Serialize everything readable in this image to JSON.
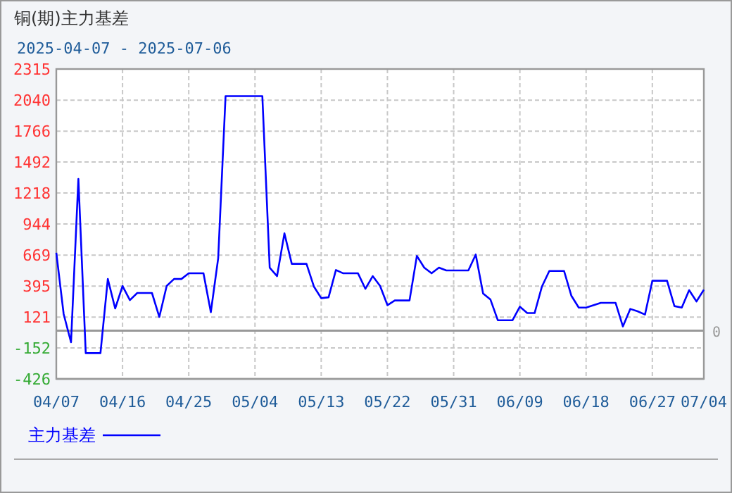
{
  "chart_data": {
    "type": "line",
    "title": "铜(期)主力基差",
    "subtitle": "2025-04-07 - 2025-07-06",
    "x": [
      "2025-04-07",
      "2025-04-08",
      "2025-04-09",
      "2025-04-10",
      "2025-04-11",
      "2025-04-13",
      "2025-04-14",
      "2025-04-15",
      "2025-04-16",
      "2025-04-17",
      "2025-04-18",
      "2025-04-20",
      "2025-04-21",
      "2025-04-22",
      "2025-04-23",
      "2025-04-24",
      "2025-04-25",
      "2025-04-27",
      "2025-04-28",
      "2025-04-29",
      "2025-04-30",
      "2025-05-05",
      "2025-05-06",
      "2025-05-07",
      "2025-05-08",
      "2025-05-09",
      "2025-05-11",
      "2025-05-12",
      "2025-05-13",
      "2025-05-14",
      "2025-05-15",
      "2025-05-16",
      "2025-05-18",
      "2025-05-19",
      "2025-05-20",
      "2025-05-21",
      "2025-05-22",
      "2025-05-23",
      "2025-05-25",
      "2025-05-26",
      "2025-05-27",
      "2025-05-28",
      "2025-05-29",
      "2025-05-30",
      "2025-06-02",
      "2025-06-03",
      "2025-06-04",
      "2025-06-05",
      "2025-06-06",
      "2025-06-08",
      "2025-06-09",
      "2025-06-10",
      "2025-06-11",
      "2025-06-12",
      "2025-06-13",
      "2025-06-15",
      "2025-06-16",
      "2025-06-17",
      "2025-06-18",
      "2025-06-20",
      "2025-06-22",
      "2025-06-23",
      "2025-06-24",
      "2025-06-25",
      "2025-06-26",
      "2025-06-27",
      "2025-06-29",
      "2025-06-30",
      "2025-07-01",
      "2025-07-02",
      "2025-07-03",
      "2025-07-04"
    ],
    "series": [
      {
        "name": "主力基差",
        "color": "#0000ff",
        "values": [
          690,
          147,
          -102,
          1343,
          -198,
          -198,
          458,
          197,
          396,
          271,
          334,
          334,
          122,
          396,
          458,
          458,
          508,
          508,
          164,
          642,
          2075,
          2075,
          558,
          483,
          861,
          592,
          592,
          392,
          288,
          296,
          537,
          508,
          508,
          371,
          483,
          396,
          226,
          268,
          268,
          662,
          558,
          508,
          558,
          533,
          533,
          674,
          330,
          276,
          93,
          93,
          213,
          156,
          156,
          392,
          529,
          529,
          309,
          205,
          205,
          247,
          247,
          38,
          193,
          172,
          143,
          442,
          442,
          218,
          205,
          359,
          259,
          363
        ]
      }
    ],
    "xlim": [
      "2025-04-07",
      "2025-07-04"
    ],
    "xticks": [
      {
        "value": "2025-04-07",
        "label": "04/07"
      },
      {
        "value": "2025-04-16",
        "label": "04/16"
      },
      {
        "value": "2025-04-25",
        "label": "04/25"
      },
      {
        "value": "2025-05-04",
        "label": "05/04"
      },
      {
        "value": "2025-05-13",
        "label": "05/13"
      },
      {
        "value": "2025-05-22",
        "label": "05/22"
      },
      {
        "value": "2025-05-31",
        "label": "05/31"
      },
      {
        "value": "2025-06-09",
        "label": "06/09"
      },
      {
        "value": "2025-06-18",
        "label": "06/18"
      },
      {
        "value": "2025-06-27",
        "label": "06/27"
      },
      {
        "value": "2025-07-04",
        "label": "07/04"
      }
    ],
    "ylim": [
      -426,
      2315
    ],
    "yticks": [
      2315,
      2040,
      1766,
      1492,
      1218,
      944,
      669,
      395,
      121,
      -152,
      -426
    ],
    "ref_lines": [
      {
        "axis": "y",
        "value": 0,
        "label": "0",
        "color": "#999999"
      }
    ],
    "grid": true,
    "legend": "bottom",
    "line_style": "solid",
    "marker": "none"
  }
}
